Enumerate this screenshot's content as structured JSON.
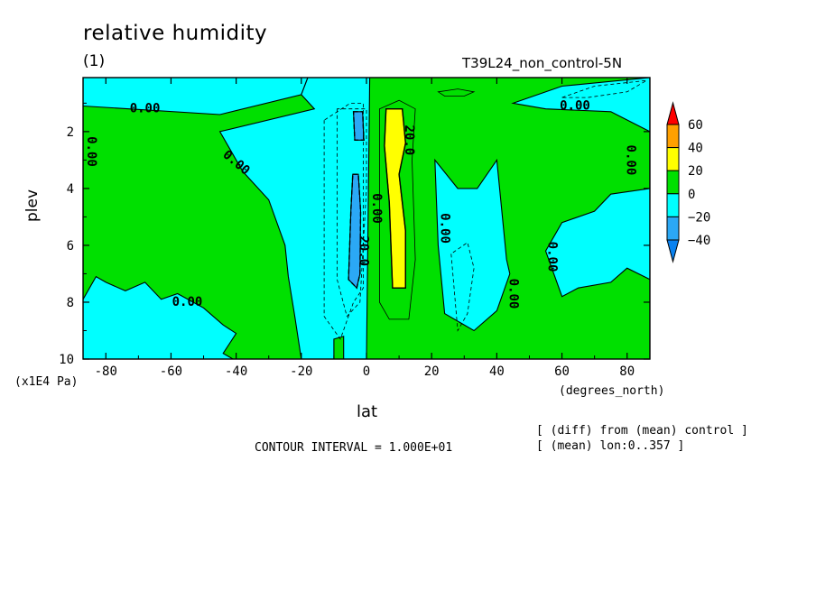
{
  "header": {
    "title": "relative humidity",
    "panel": "(1)",
    "run_name": "T39L24_non_control-5N"
  },
  "footer": {
    "contour_interval": "CONTOUR INTERVAL = 1.000E+01",
    "note_diff": "[ (diff) from (mean) control ]",
    "note_mean": "[ (mean) lon:0..357 ]"
  },
  "colors": {
    "c_lt_m40": "#0a82f0",
    "c_m40_m20": "#2ba8f5",
    "c_m20_0": "#00ffff",
    "c_0_20": "#00e000",
    "c_20_40": "#ffff00",
    "c_40_60": "#ffa000",
    "c_gt_60": "#ff0000"
  },
  "chart_data": {
    "type": "contour",
    "title": "relative humidity",
    "xlabel": "lat",
    "ylabel": "plev",
    "x_units": "(degrees_north)",
    "y_units": "(x1E4 Pa)",
    "xlim": [
      -87,
      87
    ],
    "ylim": [
      10,
      0.1
    ],
    "x_ticks": [
      -80,
      -60,
      -40,
      -20,
      0,
      20,
      40,
      60,
      80
    ],
    "x_tick_labels": [
      "-80",
      "-60",
      "-40",
      "-20",
      "0",
      "20",
      "40",
      "60",
      "80"
    ],
    "y_ticks": [
      2,
      4,
      6,
      8,
      10
    ],
    "y_tick_labels": [
      "2",
      "4",
      "6",
      "8",
      "10"
    ],
    "contour_interval": 10,
    "colorbar": {
      "levels": [
        60,
        40,
        20,
        0,
        -20,
        -40
      ],
      "labels": [
        "60",
        "40",
        "20",
        "0",
        "−20",
        "−40"
      ]
    },
    "regions": [
      {
        "range": "0..20",
        "color_key": "c_0_20",
        "points": [
          [
            -87,
            0.1
          ],
          [
            87,
            0.1
          ],
          [
            87,
            10
          ],
          [
            -87,
            10
          ]
        ]
      },
      {
        "range": "-20..0",
        "color_key": "c_m20_0",
        "points": [
          [
            -87,
            0.1
          ],
          [
            -18,
            0.1
          ],
          [
            -20,
            0.7
          ],
          [
            -45,
            1.4
          ],
          [
            -87,
            1.1
          ]
        ]
      },
      {
        "range": "-20..0",
        "color_key": "c_m20_0",
        "points": [
          [
            -87,
            7.9
          ],
          [
            -83,
            7.1
          ],
          [
            -80,
            7.3
          ],
          [
            -74,
            7.6
          ],
          [
            -68,
            7.3
          ],
          [
            -63,
            7.9
          ],
          [
            -58,
            7.7
          ],
          [
            -50,
            8.2
          ],
          [
            -44,
            8.8
          ],
          [
            -40,
            9.1
          ],
          [
            -44,
            9.8
          ],
          [
            -41,
            10
          ],
          [
            -87,
            10
          ]
        ]
      },
      {
        "range": "-20..0",
        "color_key": "c_m20_0",
        "points": [
          [
            -45,
            2.0
          ],
          [
            -38,
            3.4
          ],
          [
            -30,
            4.4
          ],
          [
            -25,
            6.0
          ],
          [
            -24,
            7.1
          ],
          [
            -22,
            8.5
          ],
          [
            -20,
            10
          ],
          [
            -10,
            10
          ],
          [
            -10,
            9.3
          ],
          [
            -7,
            9.2
          ],
          [
            -7,
            10
          ],
          [
            0,
            10
          ],
          [
            1,
            0.1
          ],
          [
            -18,
            0.1
          ],
          [
            -20,
            0.7
          ],
          [
            -16,
            1.2
          ]
        ]
      },
      {
        "range": "-20..0",
        "color_key": "c_m20_0",
        "points": [
          [
            21,
            3.0
          ],
          [
            28,
            4.0
          ],
          [
            34,
            4.0
          ],
          [
            40,
            3.0
          ],
          [
            43,
            6.5
          ],
          [
            44,
            7.0
          ],
          [
            40,
            8.3
          ],
          [
            33,
            9.0
          ],
          [
            24,
            8.4
          ],
          [
            22,
            6.0
          ]
        ]
      },
      {
        "range": "-20..0",
        "color_key": "c_m20_0",
        "points": [
          [
            45,
            1.0
          ],
          [
            60,
            0.4
          ],
          [
            87,
            0.1
          ],
          [
            87,
            4.0
          ],
          [
            75,
            4.2
          ],
          [
            70,
            4.8
          ],
          [
            60,
            5.2
          ],
          [
            55,
            6.2
          ],
          [
            60,
            7.8
          ],
          [
            65,
            7.5
          ],
          [
            75,
            7.3
          ],
          [
            80,
            6.8
          ],
          [
            87,
            7.2
          ],
          [
            87,
            2.0
          ],
          [
            75,
            1.3
          ],
          [
            55,
            1.2
          ]
        ]
      },
      {
        "range": "-40..-20",
        "color_key": "c_m40_m20",
        "points": [
          [
            -4.0,
            1.3
          ],
          [
            -1.2,
            1.3
          ],
          [
            -0.8,
            2.3
          ],
          [
            -3.6,
            2.3
          ]
        ]
      },
      {
        "range": "-40..-20",
        "color_key": "c_m40_m20",
        "points": [
          [
            -4.2,
            3.5
          ],
          [
            -2.5,
            3.5
          ],
          [
            -1.8,
            4.8
          ],
          [
            -2.0,
            7.0
          ],
          [
            -3.0,
            7.5
          ],
          [
            -5.5,
            7.2
          ],
          [
            -4.8,
            4.8
          ]
        ]
      },
      {
        "range": "20..40",
        "color_key": "c_20_40",
        "points": [
          [
            6,
            1.2
          ],
          [
            11,
            1.2
          ],
          [
            12,
            2.4
          ],
          [
            10,
            3.5
          ],
          [
            12,
            5.5
          ],
          [
            12,
            7.5
          ],
          [
            8,
            7.5
          ],
          [
            7,
            4.5
          ],
          [
            5.5,
            2.5
          ]
        ]
      }
    ],
    "contour_labels": [
      {
        "text": "0.00",
        "x": -68,
        "y": 1.2,
        "rotation": 0
      },
      {
        "text": "0.00",
        "x": -84.5,
        "y": 2.7,
        "rotation": 90
      },
      {
        "text": "0.00",
        "x": -40,
        "y": 3.1,
        "rotation": 40
      },
      {
        "text": "0.00",
        "x": -55,
        "y": 8.0,
        "rotation": 0
      },
      {
        "text": "0.00",
        "x": 3,
        "y": 4.7,
        "rotation": 90
      },
      {
        "text": "20.0",
        "x": -1,
        "y": 6.2,
        "rotation": 90
      },
      {
        "text": "20.0",
        "x": 13,
        "y": 2.3,
        "rotation": 90
      },
      {
        "text": "0.00",
        "x": 24,
        "y": 5.4,
        "rotation": 90
      },
      {
        "text": "0.00",
        "x": 45,
        "y": 7.7,
        "rotation": 90
      },
      {
        "text": "0.00",
        "x": 57,
        "y": 6.4,
        "rotation": 90
      },
      {
        "text": "0.00",
        "x": 64,
        "y": 1.1,
        "rotation": 0
      },
      {
        "text": "0.00",
        "x": 81,
        "y": 3.0,
        "rotation": 90
      }
    ]
  }
}
